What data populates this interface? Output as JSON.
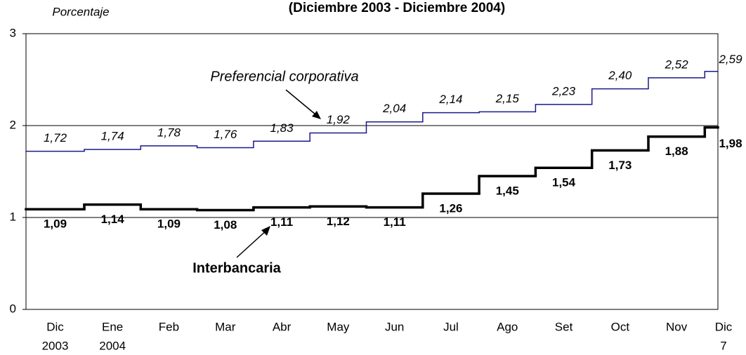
{
  "chart_data": {
    "type": "step",
    "title": "(Diciembre 2003 - Diciembre 2004)",
    "y_label": "Porcentaje",
    "categories": [
      [
        "Dic",
        "2003"
      ],
      [
        "Ene",
        "2004"
      ],
      "Feb",
      "Mar",
      "Abr",
      "May",
      "Jun",
      "Jul",
      "Ago",
      "Set",
      "Oct",
      "Nov",
      [
        "Dic",
        "7"
      ]
    ],
    "ylim": [
      0,
      3
    ],
    "yticks": [
      0,
      1,
      2,
      3
    ],
    "grid": true,
    "series": [
      {
        "name": "Preferencial corporativa",
        "color": "#1a1a8c",
        "style": "italic",
        "values": [
          1.72,
          1.74,
          1.78,
          1.76,
          1.83,
          1.92,
          2.04,
          2.14,
          2.15,
          2.23,
          2.4,
          2.52,
          2.59
        ],
        "value_labels": [
          "1,72",
          "1,74",
          "1,78",
          "1,76",
          "1,83",
          "1,92",
          "2,04",
          "2,14",
          "2,15",
          "2,23",
          "2,40",
          "2,52",
          "2,59"
        ]
      },
      {
        "name": "Interbancaria",
        "color": "#000000",
        "style": "bold",
        "values": [
          1.09,
          1.14,
          1.09,
          1.08,
          1.11,
          1.12,
          1.11,
          1.26,
          1.45,
          1.54,
          1.73,
          1.88,
          1.98
        ],
        "value_labels": [
          "1,09",
          "1,14",
          "1,09",
          "1,08",
          "1,11",
          "1,12",
          "1,11",
          "1,26",
          "1,45",
          "1,54",
          "1,73",
          "1,88",
          "1,98"
        ]
      }
    ]
  }
}
